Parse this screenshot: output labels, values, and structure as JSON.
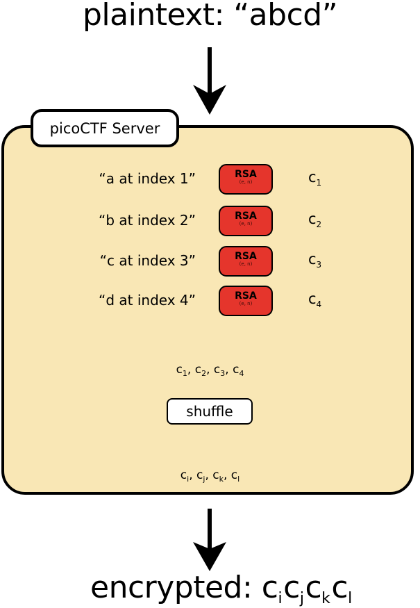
{
  "plaintext": "plaintext: “abcd”",
  "server_label": "picoCTF Server",
  "rows": [
    {
      "text": "“a at index 1”",
      "cipher": "c",
      "cipher_sub": "1"
    },
    {
      "text": "“b at index 2”",
      "cipher": "c",
      "cipher_sub": "2"
    },
    {
      "text": "“c at index 3”",
      "cipher": "c",
      "cipher_sub": "3"
    },
    {
      "text": "“d at index 4”",
      "cipher": "c",
      "cipher_sub": "4"
    }
  ],
  "rsa": {
    "label": "RSA",
    "sub": "(e, n)"
  },
  "list_before": {
    "c": "c",
    "s1": "1",
    "s2": "2",
    "s3": "3",
    "s4": "4",
    "sep": ", "
  },
  "shuffle_label": "shuffle",
  "list_after": {
    "c": "c",
    "si": "i",
    "sj": "j",
    "sk": "k",
    "sl": "l",
    "sep": ", "
  },
  "encrypted": {
    "label": "encrypted: ",
    "c": "c",
    "si": "i",
    "sj": "j",
    "sk": "k",
    "sl": "l"
  }
}
